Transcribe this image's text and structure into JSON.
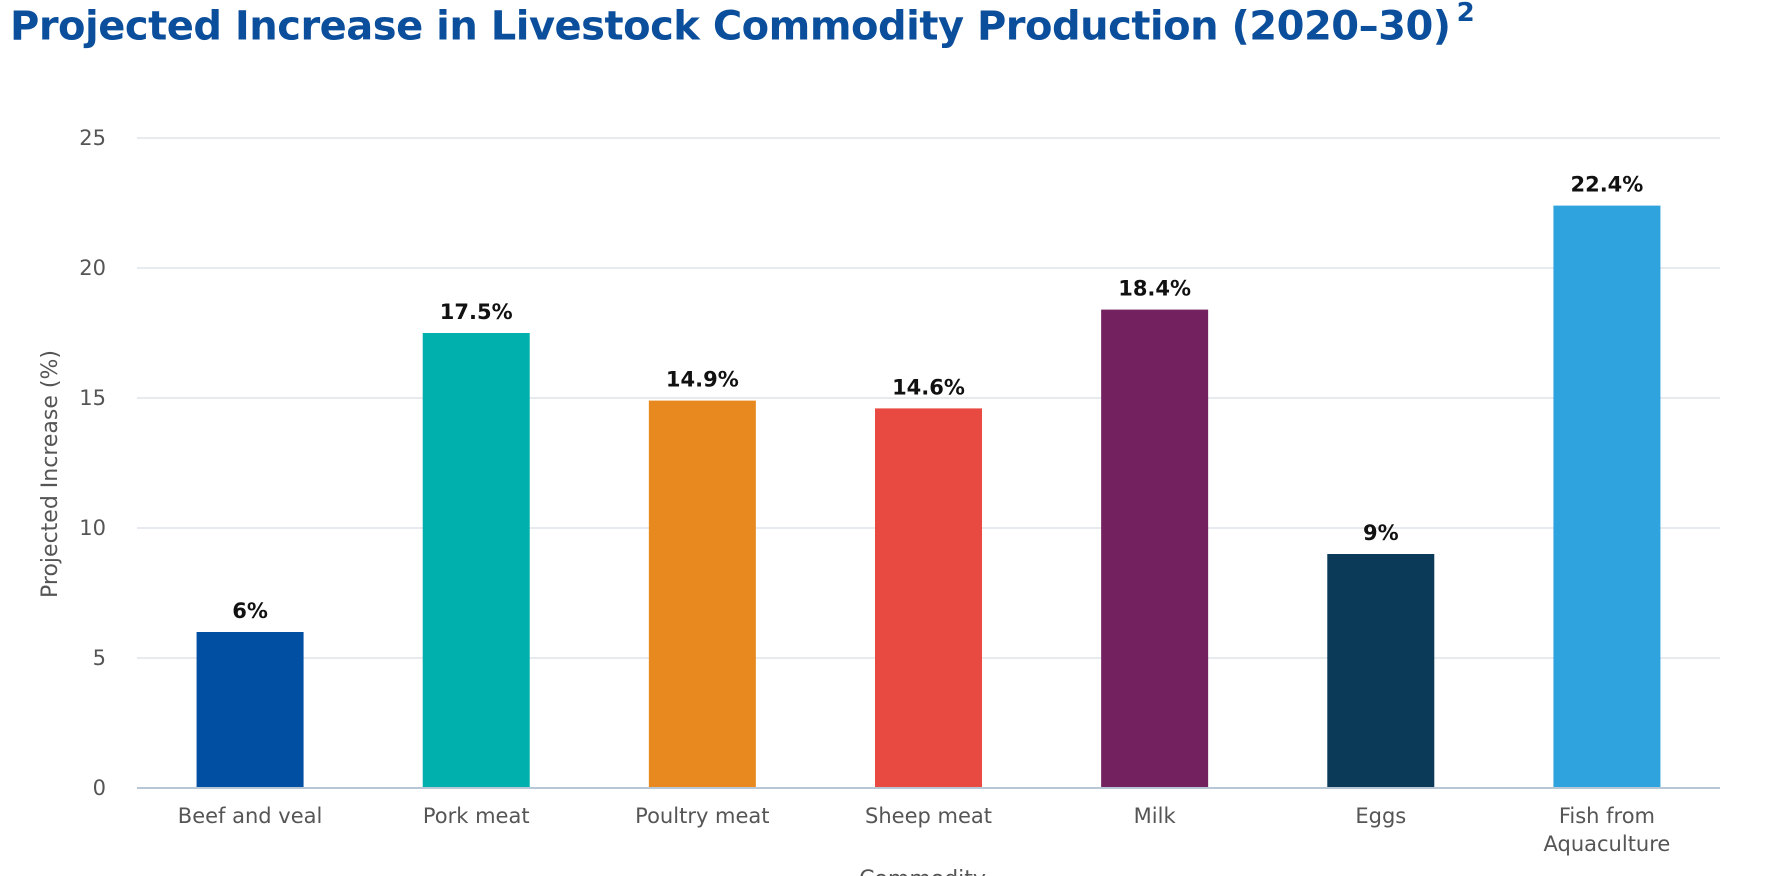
{
  "chart_data": {
    "type": "bar",
    "title": "Projected Increase in Livestock Commodity Production (2020–30)",
    "title_superscript": "2",
    "xlabel": "Commodity",
    "ylabel": "Projected Increase (%)",
    "ylim": [
      0,
      25
    ],
    "yticks": [
      0,
      5,
      10,
      15,
      20,
      25
    ],
    "grid": true,
    "legend": "none",
    "categories": [
      [
        "Beef and veal"
      ],
      [
        "Pork meat"
      ],
      [
        "Poultry meat"
      ],
      [
        "Sheep meat"
      ],
      [
        "Milk"
      ],
      [
        "Eggs"
      ],
      [
        "Fish from",
        "Aquaculture"
      ]
    ],
    "values": [
      6,
      17.5,
      14.9,
      14.6,
      18.4,
      9,
      22.4
    ],
    "data_labels": [
      "6%",
      "17.5%",
      "14.9%",
      "14.6%",
      "18.4%",
      "9%",
      "22.4%"
    ],
    "colors": [
      "#004fa3",
      "#00b0ad",
      "#e8891f",
      "#e84a42",
      "#74225f",
      "#0b3a58",
      "#2ea3dd"
    ]
  }
}
